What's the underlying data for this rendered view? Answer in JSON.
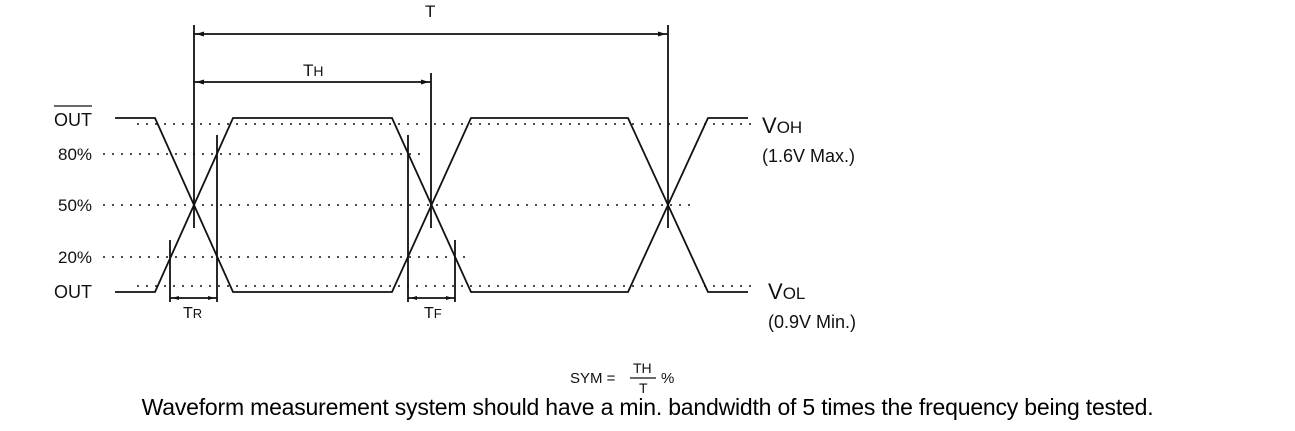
{
  "labels": {
    "out_bar": "OUT",
    "out": "OUT",
    "p80": "80%",
    "p50": "50%",
    "p20": "20%",
    "period": "T",
    "th_main": "T",
    "th_sub": "H",
    "tr_main": "T",
    "tr_sub": "R",
    "tf_main": "T",
    "tf_sub": "F",
    "voh_main": "V",
    "voh_sub": "OH",
    "voh_limit": "(1.6V Max.)",
    "vol_main": "V",
    "vol_sub": "OL",
    "vol_limit": "(0.9V Min.)"
  },
  "formula": {
    "lhs": "SYM =",
    "num": "TH",
    "den": "T",
    "unit": "%"
  },
  "caption": "Waveform measurement system should have a min. bandwidth of 5 times the frequency being tested.",
  "colors": {
    "line": "#111111",
    "background": "#ffffff"
  }
}
